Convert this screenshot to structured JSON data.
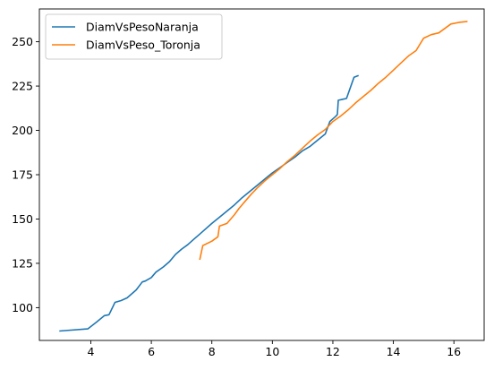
{
  "chart_data": {
    "type": "line",
    "title": "",
    "xlabel": "",
    "ylabel": "",
    "xlim": [
      2.3,
      17.0
    ],
    "ylim": [
      81.5,
      268.5
    ],
    "xticks": [
      4,
      6,
      8,
      10,
      12,
      14,
      16
    ],
    "yticks": [
      100,
      125,
      150,
      175,
      200,
      225,
      250
    ],
    "grid": false,
    "legend": "top-left",
    "series": [
      {
        "name": "DiamVsPesoNaranja",
        "color": "#1f77b4",
        "points": [
          [
            2.96,
            86.8
          ],
          [
            3.9,
            88.0
          ],
          [
            4.2,
            92.0
          ],
          [
            4.45,
            95.5
          ],
          [
            4.6,
            96.0
          ],
          [
            4.8,
            103.0
          ],
          [
            5.0,
            104.0
          ],
          [
            5.2,
            105.5
          ],
          [
            5.5,
            110.0
          ],
          [
            5.7,
            114.5
          ],
          [
            5.8,
            115.0
          ],
          [
            6.0,
            117.0
          ],
          [
            6.15,
            120.0
          ],
          [
            6.4,
            123.0
          ],
          [
            6.6,
            126.0
          ],
          [
            6.8,
            130.0
          ],
          [
            7.0,
            133.0
          ],
          [
            7.2,
            135.5
          ],
          [
            7.4,
            138.5
          ],
          [
            7.6,
            141.5
          ],
          [
            7.8,
            144.5
          ],
          [
            8.0,
            147.5
          ],
          [
            8.25,
            151.0
          ],
          [
            8.5,
            154.5
          ],
          [
            8.75,
            158.0
          ],
          [
            9.0,
            162.0
          ],
          [
            9.25,
            165.5
          ],
          [
            9.5,
            169.0
          ],
          [
            9.75,
            172.5
          ],
          [
            10.0,
            176.0
          ],
          [
            10.25,
            179.0
          ],
          [
            10.5,
            182.0
          ],
          [
            10.75,
            185.0
          ],
          [
            11.0,
            188.5
          ],
          [
            11.25,
            191.0
          ],
          [
            11.5,
            194.5
          ],
          [
            11.75,
            198.0
          ],
          [
            11.9,
            205.0
          ],
          [
            12.1,
            208.0
          ],
          [
            12.15,
            209.0
          ],
          [
            12.18,
            217.0
          ],
          [
            12.45,
            218.0
          ],
          [
            12.7,
            230.0
          ],
          [
            12.85,
            231.0
          ]
        ]
      },
      {
        "name": "DiamVsPeso_Toronja",
        "color": "#ff7f0e",
        "points": [
          [
            7.6,
            127.0
          ],
          [
            7.7,
            135.0
          ],
          [
            8.0,
            137.5
          ],
          [
            8.2,
            140.0
          ],
          [
            8.25,
            146.0
          ],
          [
            8.5,
            147.5
          ],
          [
            8.75,
            152.5
          ],
          [
            8.9,
            156.0
          ],
          [
            9.1,
            160.0
          ],
          [
            9.3,
            164.0
          ],
          [
            9.5,
            167.5
          ],
          [
            9.75,
            171.5
          ],
          [
            10.0,
            175.0
          ],
          [
            10.25,
            178.5
          ],
          [
            10.5,
            182.5
          ],
          [
            10.75,
            186.0
          ],
          [
            11.0,
            190.0
          ],
          [
            11.25,
            194.0
          ],
          [
            11.5,
            197.5
          ],
          [
            11.75,
            200.5
          ],
          [
            12.0,
            205.0
          ],
          [
            12.25,
            208.0
          ],
          [
            12.5,
            211.5
          ],
          [
            12.75,
            215.5
          ],
          [
            13.0,
            219.0
          ],
          [
            13.25,
            222.5
          ],
          [
            13.5,
            226.5
          ],
          [
            13.75,
            230.0
          ],
          [
            14.0,
            234.0
          ],
          [
            14.25,
            238.0
          ],
          [
            14.5,
            242.0
          ],
          [
            14.75,
            245.0
          ],
          [
            15.0,
            252.0
          ],
          [
            15.25,
            254.0
          ],
          [
            15.5,
            255.0
          ],
          [
            15.9,
            260.0
          ],
          [
            16.2,
            261.0
          ],
          [
            16.45,
            261.5
          ]
        ]
      }
    ]
  }
}
